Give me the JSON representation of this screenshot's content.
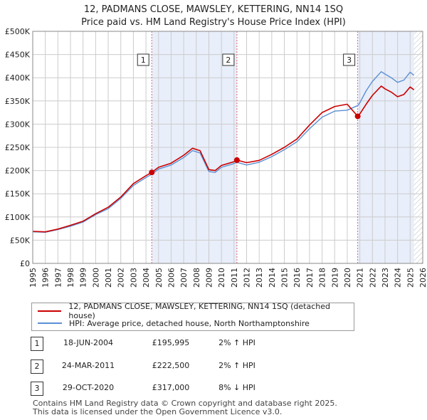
{
  "title": {
    "line1": "12, PADMANS CLOSE, MAWSLEY, KETTERING, NN14 1SQ",
    "line2": "Price paid vs. HM Land Registry's House Price Index (HPI)"
  },
  "legend": {
    "property_label": "12, PADMANS CLOSE, MAWSLEY, KETTERING, NN14 1SQ (detached house)",
    "hpi_label": "HPI: Average price, detached house, North Northamptonshire"
  },
  "colors": {
    "property": "#cc0000",
    "hpi": "#5b8fd4",
    "shade": "#e8eefa",
    "grid": "#cccccc",
    "marker_line": "#e06666"
  },
  "transactions": [
    {
      "num": "1",
      "date": "18-JUN-2004",
      "price": "£195,995",
      "delta": "2% ↑ HPI"
    },
    {
      "num": "2",
      "date": "24-MAR-2011",
      "price": "£222,500",
      "delta": "2% ↑ HPI"
    },
    {
      "num": "3",
      "date": "29-OCT-2020",
      "price": "£317,000",
      "delta": "8% ↓ HPI"
    }
  ],
  "footer": {
    "line1": "Contains HM Land Registry data © Crown copyright and database right 2025.",
    "line2": "This data is licensed under the Open Government Licence v3.0."
  },
  "chart_data": {
    "type": "line",
    "xlim": [
      1995,
      2026
    ],
    "ylim": [
      0,
      500000
    ],
    "x_ticks": [
      "1995",
      "1996",
      "1997",
      "1998",
      "1999",
      "2000",
      "2001",
      "2002",
      "2003",
      "2004",
      "2005",
      "2006",
      "2007",
      "2008",
      "2009",
      "2010",
      "2011",
      "2012",
      "2013",
      "2014",
      "2015",
      "2016",
      "2017",
      "2018",
      "2019",
      "2020",
      "2021",
      "2022",
      "2023",
      "2024",
      "2025",
      "2026"
    ],
    "y_ticks": [
      {
        "value": 0,
        "label": "£0"
      },
      {
        "value": 50000,
        "label": "£50K"
      },
      {
        "value": 100000,
        "label": "£100K"
      },
      {
        "value": 150000,
        "label": "£150K"
      },
      {
        "value": 200000,
        "label": "£200K"
      },
      {
        "value": 250000,
        "label": "£250K"
      },
      {
        "value": 300000,
        "label": "£300K"
      },
      {
        "value": 350000,
        "label": "£350K"
      },
      {
        "value": 400000,
        "label": "£400K"
      },
      {
        "value": 450000,
        "label": "£450K"
      },
      {
        "value": 500000,
        "label": "£500K"
      }
    ],
    "grid": true,
    "shaded_ranges": [
      [
        2004.46,
        2011.23
      ],
      [
        2020.83,
        2025.3
      ]
    ],
    "hatched_from": 2025.3,
    "sales": [
      {
        "label": "1",
        "x": 2004.46,
        "y": 195995
      },
      {
        "label": "2",
        "x": 2011.23,
        "y": 222500
      },
      {
        "label": "3",
        "x": 2020.83,
        "y": 317000
      }
    ],
    "series": [
      {
        "key": "hpi",
        "x": [
          1995,
          1996,
          1997,
          1998,
          1999,
          2000,
          2001,
          2002,
          2003,
          2004,
          2004.46,
          2005,
          2006,
          2007,
          2007.7,
          2008.3,
          2009,
          2009.5,
          2010,
          2011,
          2011.23,
          2012,
          2013,
          2014,
          2015,
          2016,
          2017,
          2018,
          2019,
          2020,
          2020.83,
          2021,
          2021.5,
          2022,
          2022.7,
          2023,
          2023.5,
          2024,
          2024.5,
          2025,
          2025.3
        ],
        "y": [
          68000,
          67000,
          73000,
          80000,
          89000,
          105000,
          118000,
          140000,
          168000,
          185000,
          192000,
          203000,
          212000,
          228000,
          243000,
          238000,
          198000,
          196000,
          207000,
          215000,
          218000,
          212000,
          218000,
          230000,
          245000,
          262000,
          290000,
          315000,
          328000,
          330000,
          340000,
          346000,
          372000,
          392000,
          413000,
          408000,
          400000,
          390000,
          395000,
          412000,
          405000
        ]
      },
      {
        "key": "property",
        "x": [
          1995,
          1996,
          1997,
          1998,
          1999,
          2000,
          2001,
          2002,
          2003,
          2004,
          2004.46,
          2005,
          2006,
          2007,
          2007.7,
          2008.3,
          2009,
          2009.5,
          2010,
          2011,
          2011.23,
          2012,
          2013,
          2014,
          2015,
          2016,
          2017,
          2018,
          2019,
          2020,
          2020.83,
          2021,
          2021.5,
          2022,
          2022.7,
          2023,
          2023.5,
          2024,
          2024.5,
          2025,
          2025.3
        ],
        "y": [
          69000,
          68000,
          74000,
          82000,
          91000,
          107000,
          121000,
          143000,
          172000,
          189000,
          195995,
          207000,
          216000,
          233000,
          248000,
          243000,
          202000,
          200000,
          211000,
          219000,
          222500,
          217000,
          222000,
          235000,
          250000,
          268000,
          298000,
          325000,
          338000,
          343000,
          317000,
          322000,
          343000,
          362000,
          382000,
          376000,
          369000,
          359000,
          364000,
          380000,
          374000
        ]
      }
    ]
  }
}
